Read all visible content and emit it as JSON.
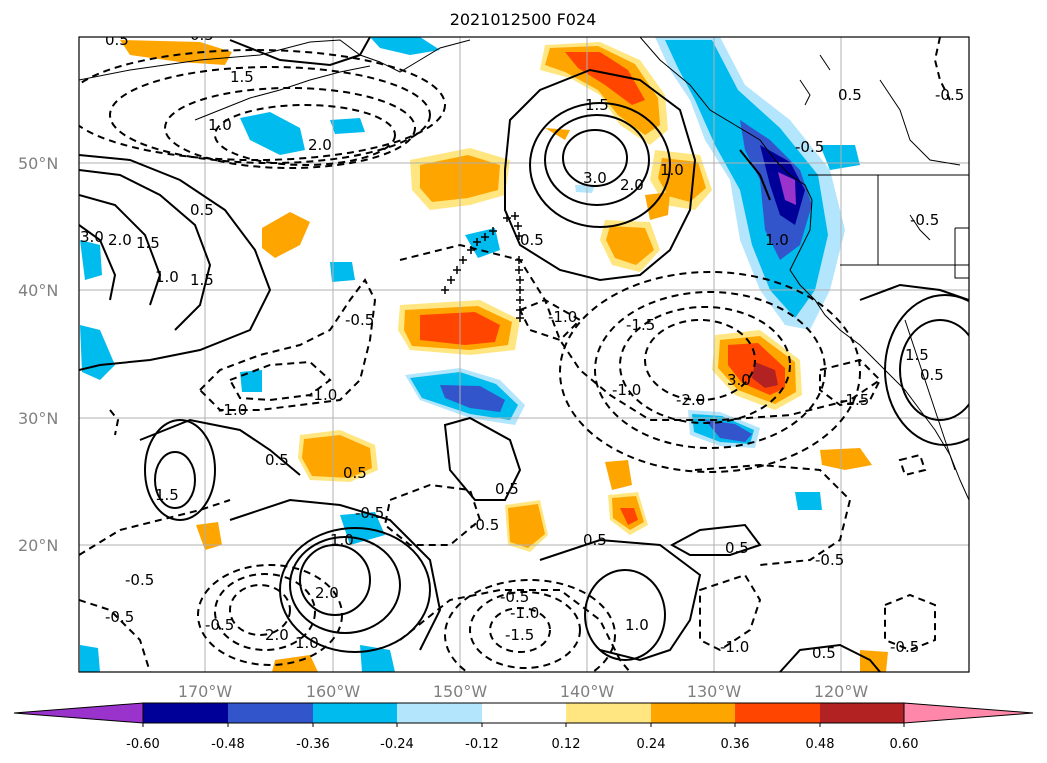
{
  "title": "2021012500 F024",
  "lat_labels": [
    "50°N",
    "40°N",
    "30°N",
    "20°N"
  ],
  "lon_labels": [
    "170°W",
    "160°W",
    "150°W",
    "140°W",
    "130°W",
    "120°W"
  ],
  "colorbar": {
    "tick_labels": [
      "-0.60",
      "-0.48",
      "-0.36",
      "-0.24",
      "-0.12",
      "0.12",
      "0.24",
      "0.36",
      "0.48",
      "0.60"
    ],
    "colors": [
      "#9933cc",
      "#000099",
      "#3355cc",
      "#00bbee",
      "#b3e5fc",
      "#ffffff",
      "#ffe680",
      "#ffa500",
      "#ff4500",
      "#b22222",
      "#ff88aa"
    ],
    "extend": "both"
  },
  "contour_labels": [
    "0.5",
    "1.5",
    "1.0",
    "2.0",
    "3.0",
    "-0.5",
    "-1.0",
    "-1.5",
    "-2.0"
  ],
  "styles": {
    "positive": "solid",
    "negative": "dashed"
  }
}
